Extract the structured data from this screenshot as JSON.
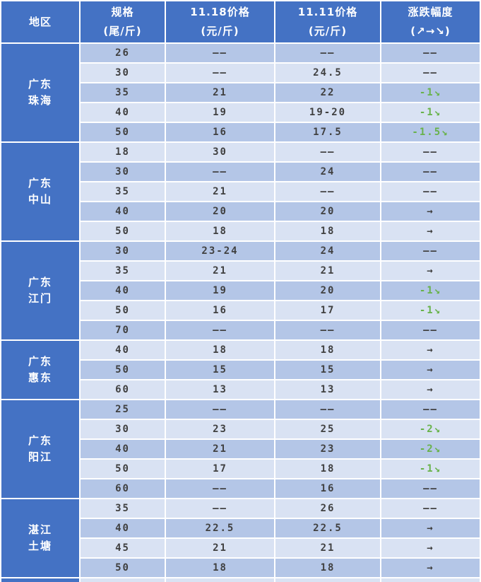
{
  "colors": {
    "header_bg": "#4472C4",
    "region_bg": "#4472C4",
    "row_stripe_dark": "#B4C6E7",
    "row_stripe_light": "#D9E2F3",
    "text_dark": "#404040",
    "text_white": "#FFFFFF",
    "change_down_green": "#68B24A"
  },
  "chart_data": {
    "type": "table",
    "columns": [
      {
        "line1": "地区",
        "line2": ""
      },
      {
        "line1": "规格",
        "line2": "(尾/斤)"
      },
      {
        "line1": "11.18价格",
        "line2": "(元/斤)"
      },
      {
        "line1": "11.11价格",
        "line2": "(元/斤)"
      },
      {
        "line1": "涨跌幅度",
        "line2": "(↗→↘)"
      }
    ],
    "sections": [
      {
        "region_lines": [
          "广东",
          "珠海"
        ],
        "rows": [
          {
            "spec": "26",
            "p1118": "——",
            "p1111": "——",
            "change": "——",
            "trend": "none"
          },
          {
            "spec": "30",
            "p1118": "——",
            "p1111": "24.5",
            "change": "——",
            "trend": "none"
          },
          {
            "spec": "35",
            "p1118": "21",
            "p1111": "22",
            "change": "-1↘",
            "trend": "down"
          },
          {
            "spec": "40",
            "p1118": "19",
            "p1111": "19-20",
            "change": "-1↘",
            "trend": "down"
          },
          {
            "spec": "50",
            "p1118": "16",
            "p1111": "17.5",
            "change": "-1.5↘",
            "trend": "down"
          }
        ]
      },
      {
        "region_lines": [
          "广东",
          "中山"
        ],
        "rows": [
          {
            "spec": "18",
            "p1118": "30",
            "p1111": "——",
            "change": "——",
            "trend": "none"
          },
          {
            "spec": "30",
            "p1118": "——",
            "p1111": "24",
            "change": "——",
            "trend": "none"
          },
          {
            "spec": "35",
            "p1118": "21",
            "p1111": "——",
            "change": "——",
            "trend": "none"
          },
          {
            "spec": "40",
            "p1118": "20",
            "p1111": "20",
            "change": "→",
            "trend": "flat"
          },
          {
            "spec": "50",
            "p1118": "18",
            "p1111": "18",
            "change": "→",
            "trend": "flat"
          }
        ]
      },
      {
        "region_lines": [
          "广东",
          "江门"
        ],
        "rows": [
          {
            "spec": "30",
            "p1118": "23-24",
            "p1111": "24",
            "change": "——",
            "trend": "none"
          },
          {
            "spec": "35",
            "p1118": "21",
            "p1111": "21",
            "change": "→",
            "trend": "flat"
          },
          {
            "spec": "40",
            "p1118": "19",
            "p1111": "20",
            "change": "-1↘",
            "trend": "down"
          },
          {
            "spec": "50",
            "p1118": "16",
            "p1111": "17",
            "change": "-1↘",
            "trend": "down"
          },
          {
            "spec": "70",
            "p1118": "——",
            "p1111": "——",
            "change": "——",
            "trend": "none"
          }
        ]
      },
      {
        "region_lines": [
          "广东",
          "惠东"
        ],
        "rows": [
          {
            "spec": "40",
            "p1118": "18",
            "p1111": "18",
            "change": "→",
            "trend": "flat"
          },
          {
            "spec": "50",
            "p1118": "15",
            "p1111": "15",
            "change": "→",
            "trend": "flat"
          },
          {
            "spec": "60",
            "p1118": "13",
            "p1111": "13",
            "change": "→",
            "trend": "flat"
          }
        ]
      },
      {
        "region_lines": [
          "广东",
          "阳江"
        ],
        "rows": [
          {
            "spec": "25",
            "p1118": "——",
            "p1111": "——",
            "change": "——",
            "trend": "none"
          },
          {
            "spec": "30",
            "p1118": "23",
            "p1111": "25",
            "change": "-2↘",
            "trend": "down"
          },
          {
            "spec": "40",
            "p1118": "21",
            "p1111": "23",
            "change": "-2↘",
            "trend": "down"
          },
          {
            "spec": "50",
            "p1118": "17",
            "p1111": "18",
            "change": "-1↘",
            "trend": "down"
          },
          {
            "spec": "60",
            "p1118": "——",
            "p1111": "16",
            "change": "——",
            "trend": "none"
          }
        ]
      },
      {
        "region_lines": [
          "湛江",
          "土塘"
        ],
        "rows": [
          {
            "spec": "35",
            "p1118": "——",
            "p1111": "26",
            "change": "——",
            "trend": "none"
          },
          {
            "spec": "40",
            "p1118": "22.5",
            "p1111": "22.5",
            "change": "→",
            "trend": "flat"
          },
          {
            "spec": "45",
            "p1118": "21",
            "p1111": "21",
            "change": "→",
            "trend": "flat"
          },
          {
            "spec": "50",
            "p1118": "18",
            "p1111": "18",
            "change": "→",
            "trend": "flat"
          }
        ]
      }
    ]
  }
}
